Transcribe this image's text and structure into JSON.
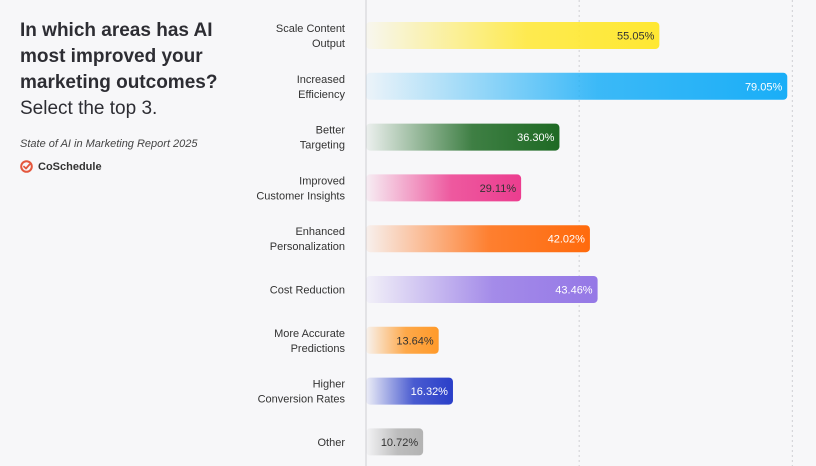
{
  "title_bold": "In which areas has AI most improved your marketing outcomes?",
  "title_sub": "Select the top 3.",
  "source": "State of AI in Marketing Report 2025",
  "brand": {
    "name": "CoSchedule",
    "icon": "coschedule-check-icon",
    "color": "#e4573d"
  },
  "chart_data": {
    "type": "bar",
    "orientation": "horizontal",
    "categories": [
      [
        "Scale Content",
        "Output"
      ],
      [
        "Increased",
        "Efficiency"
      ],
      [
        "Better",
        "Targeting"
      ],
      [
        "Improved",
        "Customer Insights"
      ],
      [
        "Enhanced",
        "Personalization"
      ],
      [
        "Cost Reduction"
      ],
      [
        "More Accurate",
        "Predictions"
      ],
      [
        "Higher",
        "Conversion Rates"
      ],
      [
        "Other"
      ]
    ],
    "values": [
      55.05,
      79.05,
      36.3,
      29.11,
      42.02,
      43.46,
      13.64,
      16.32,
      10.72
    ],
    "value_labels": [
      "55.05%",
      "79.05%",
      "36.30%",
      "29.11%",
      "42.02%",
      "43.46%",
      "13.64%",
      "16.32%",
      "10.72%"
    ],
    "colors": [
      "#ffe832",
      "#1aaef7",
      "#1e6a24",
      "#ec3d8f",
      "#ff6a0c",
      "#9578e6",
      "#ff9a2a",
      "#2a3fc9",
      "#b3b3b3"
    ],
    "label_colors": [
      "#333333",
      "#ffffff",
      "#ffffff",
      "#333333",
      "#ffffff",
      "#ffffff",
      "#333333",
      "#ffffff",
      "#333333"
    ],
    "xlim": [
      0,
      80
    ],
    "grid": true
  }
}
